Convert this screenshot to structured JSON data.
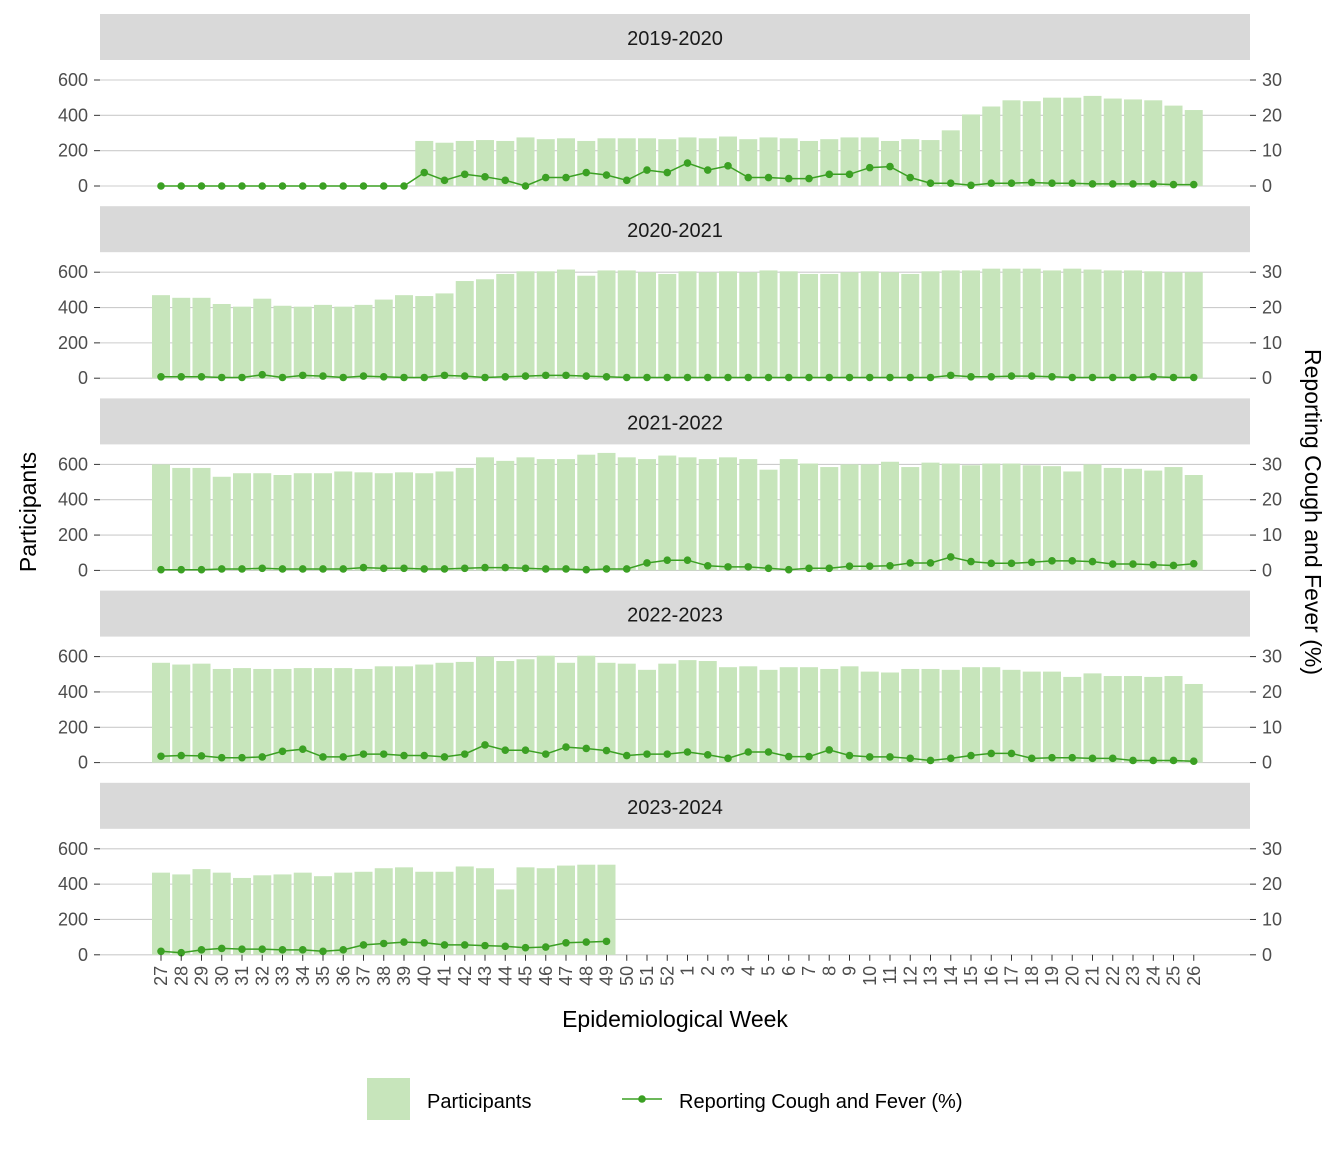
{
  "chart_data": {
    "type": "bar",
    "xlabel": "Epidemiological Week",
    "ylabel_left": "Participants",
    "ylabel_right": "Reporting Cough and Fever (%)",
    "ylim_left": [
      0,
      600
    ],
    "ylim_right": [
      0,
      30
    ],
    "left_ticks": [
      0,
      200,
      400,
      600
    ],
    "right_ticks": [
      0,
      10,
      20,
      30
    ],
    "grid": true,
    "legend_position": "bottom",
    "legend": [
      {
        "label": "Participants",
        "kind": "bar"
      },
      {
        "label": "Reporting Cough and Fever (%)",
        "kind": "line"
      }
    ],
    "colors": {
      "bar": "#c7e5bb",
      "line": "#3ba023",
      "strip": "#d9d9d9",
      "grid": "#cccccc"
    },
    "categories": [
      "27",
      "28",
      "29",
      "30",
      "31",
      "32",
      "33",
      "34",
      "35",
      "36",
      "37",
      "38",
      "39",
      "40",
      "41",
      "42",
      "43",
      "44",
      "45",
      "46",
      "47",
      "48",
      "49",
      "50",
      "51",
      "52",
      "1",
      "2",
      "3",
      "4",
      "5",
      "6",
      "7",
      "8",
      "9",
      "10",
      "11",
      "12",
      "13",
      "14",
      "15",
      "16",
      "17",
      "18",
      "19",
      "20",
      "21",
      "22",
      "23",
      "24",
      "25",
      "26"
    ],
    "panels": [
      {
        "season": "2019-2020",
        "participants": [
          null,
          null,
          null,
          null,
          null,
          null,
          null,
          null,
          null,
          null,
          null,
          null,
          null,
          255,
          245,
          255,
          260,
          255,
          275,
          265,
          270,
          255,
          270,
          270,
          270,
          265,
          275,
          270,
          280,
          265,
          275,
          270,
          255,
          265,
          275,
          275,
          255,
          265,
          260,
          315,
          405,
          450,
          485,
          480,
          500,
          500,
          510,
          495,
          490,
          485,
          455,
          430
        ],
        "cough_fever_pct": [
          0,
          0,
          0,
          0,
          0,
          0,
          0,
          0,
          0,
          0,
          0,
          0,
          0,
          3.8,
          1.6,
          3.3,
          2.6,
          1.6,
          0,
          2.4,
          2.4,
          3.8,
          3.1,
          1.6,
          4.5,
          3.8,
          6.5,
          4.5,
          5.7,
          2.4,
          2.4,
          2.1,
          2.1,
          3.3,
          3.3,
          5.2,
          5.5,
          2.4,
          0.8,
          0.8,
          0.2,
          0.8,
          0.8,
          1.0,
          0.8,
          0.8,
          0.6,
          0.6,
          0.6,
          0.6,
          0.4,
          0.4
        ]
      },
      {
        "season": "2020-2021",
        "participants": [
          470,
          455,
          455,
          420,
          405,
          450,
          410,
          405,
          415,
          405,
          415,
          445,
          470,
          465,
          480,
          550,
          560,
          590,
          605,
          605,
          615,
          580,
          610,
          610,
          600,
          590,
          605,
          600,
          605,
          600,
          610,
          605,
          590,
          590,
          600,
          605,
          600,
          590,
          605,
          610,
          610,
          620,
          620,
          620,
          610,
          620,
          615,
          610,
          610,
          605,
          600,
          600
        ],
        "cough_fever_pct": [
          0.4,
          0.4,
          0.4,
          0.2,
          0.2,
          1.0,
          0.2,
          0.8,
          0.6,
          0.2,
          0.6,
          0.4,
          0.2,
          0.2,
          0.8,
          0.6,
          0.2,
          0.4,
          0.6,
          0.8,
          0.8,
          0.6,
          0.4,
          0.2,
          0.2,
          0.2,
          0.2,
          0.2,
          0.2,
          0.2,
          0.2,
          0.2,
          0.2,
          0.2,
          0.2,
          0.2,
          0.2,
          0.2,
          0.2,
          0.8,
          0.4,
          0.4,
          0.6,
          0.6,
          0.4,
          0.2,
          0.2,
          0.2,
          0.2,
          0.4,
          0.2,
          0.2
        ]
      },
      {
        "season": "2021-2022",
        "participants": [
          600,
          580,
          580,
          530,
          550,
          550,
          540,
          550,
          550,
          560,
          555,
          550,
          555,
          550,
          560,
          580,
          640,
          620,
          640,
          630,
          630,
          655,
          665,
          640,
          630,
          650,
          640,
          630,
          640,
          630,
          570,
          630,
          605,
          585,
          600,
          600,
          615,
          585,
          610,
          605,
          595,
          605,
          605,
          595,
          590,
          560,
          600,
          580,
          575,
          565,
          585,
          540
        ],
        "cough_fever_pct": [
          0.2,
          0.2,
          0.2,
          0.4,
          0.4,
          0.6,
          0.4,
          0.4,
          0.4,
          0.4,
          0.8,
          0.6,
          0.6,
          0.4,
          0.4,
          0.6,
          0.8,
          0.8,
          0.6,
          0.4,
          0.4,
          0.2,
          0.4,
          0.4,
          2.1,
          2.9,
          2.9,
          1.3,
          1.0,
          1.0,
          0.6,
          0.2,
          0.6,
          0.6,
          1.2,
          1.2,
          1.3,
          2.1,
          2.1,
          3.8,
          2.5,
          2.0,
          2.0,
          2.3,
          2.7,
          2.7,
          2.5,
          1.8,
          1.8,
          1.6,
          1.4,
          1.9
        ]
      },
      {
        "season": "2022-2023",
        "participants": [
          565,
          555,
          560,
          530,
          535,
          530,
          530,
          535,
          535,
          535,
          530,
          545,
          545,
          555,
          565,
          570,
          600,
          575,
          585,
          605,
          565,
          605,
          565,
          560,
          525,
          560,
          580,
          575,
          540,
          545,
          525,
          540,
          540,
          530,
          545,
          515,
          510,
          530,
          530,
          525,
          540,
          540,
          525,
          515,
          515,
          485,
          505,
          490,
          490,
          485,
          490,
          445
        ],
        "cough_fever_pct": [
          1.8,
          2.0,
          1.9,
          1.4,
          1.4,
          1.6,
          3.2,
          3.8,
          1.6,
          1.6,
          2.4,
          2.4,
          2.0,
          2.0,
          1.6,
          2.4,
          5.0,
          3.5,
          3.5,
          2.4,
          4.4,
          4.0,
          3.4,
          2.0,
          2.4,
          2.4,
          3.0,
          2.2,
          1.2,
          3.0,
          3.0,
          1.7,
          1.7,
          3.6,
          2.0,
          1.6,
          1.6,
          1.2,
          0.6,
          1.2,
          2.0,
          2.6,
          2.6,
          1.2,
          1.4,
          1.4,
          1.2,
          1.2,
          0.6,
          0.6,
          0.6,
          0.4
        ]
      },
      {
        "season": "2023-2024",
        "participants": [
          465,
          455,
          485,
          465,
          435,
          450,
          455,
          465,
          445,
          465,
          470,
          490,
          495,
          470,
          470,
          500,
          490,
          370,
          495,
          490,
          505,
          510,
          510,
          null,
          null,
          null,
          null,
          null,
          null,
          null,
          null,
          null,
          null,
          null,
          null,
          null,
          null,
          null,
          null,
          null,
          null,
          null,
          null,
          null,
          null,
          null,
          null,
          null,
          null,
          null,
          null,
          null
        ],
        "cough_fever_pct": [
          1.0,
          0.6,
          1.4,
          1.8,
          1.6,
          1.6,
          1.4,
          1.4,
          1.0,
          1.4,
          2.8,
          3.2,
          3.6,
          3.4,
          2.8,
          2.8,
          2.6,
          2.4,
          2.0,
          2.2,
          3.4,
          3.6,
          3.8,
          null,
          null,
          null,
          null,
          null,
          null,
          null,
          null,
          null,
          null,
          null,
          null,
          null,
          null,
          null,
          null,
          null,
          null,
          null,
          null,
          null,
          null,
          null,
          null,
          null,
          null,
          null,
          null,
          null
        ]
      }
    ]
  }
}
